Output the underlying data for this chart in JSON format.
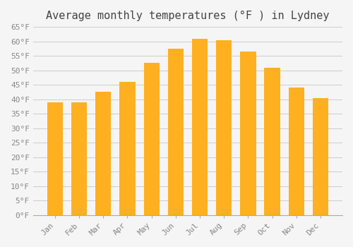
{
  "title": "Average monthly temperatures (°F ) in Lydney",
  "months": [
    "Jan",
    "Feb",
    "Mar",
    "Apr",
    "May",
    "Jun",
    "Jul",
    "Aug",
    "Sep",
    "Oct",
    "Nov",
    "Dec"
  ],
  "values": [
    39,
    39,
    42.5,
    46,
    52.5,
    57.5,
    61,
    60.5,
    56.5,
    51,
    44,
    40.5
  ],
  "bar_color": "#FFB020",
  "background_color": "#F5F5F5",
  "ylim": [
    0,
    65
  ],
  "yticks": [
    0,
    5,
    10,
    15,
    20,
    25,
    30,
    35,
    40,
    45,
    50,
    55,
    60,
    65
  ],
  "ytick_labels": [
    "0°F",
    "5°F",
    "10°F",
    "15°F",
    "20°F",
    "25°F",
    "30°F",
    "35°F",
    "40°F",
    "45°F",
    "50°F",
    "55°F",
    "60°F",
    "65°F"
  ],
  "grid_color": "#CCCCCC",
  "title_fontsize": 11,
  "tick_fontsize": 8,
  "bar_width": 0.65
}
